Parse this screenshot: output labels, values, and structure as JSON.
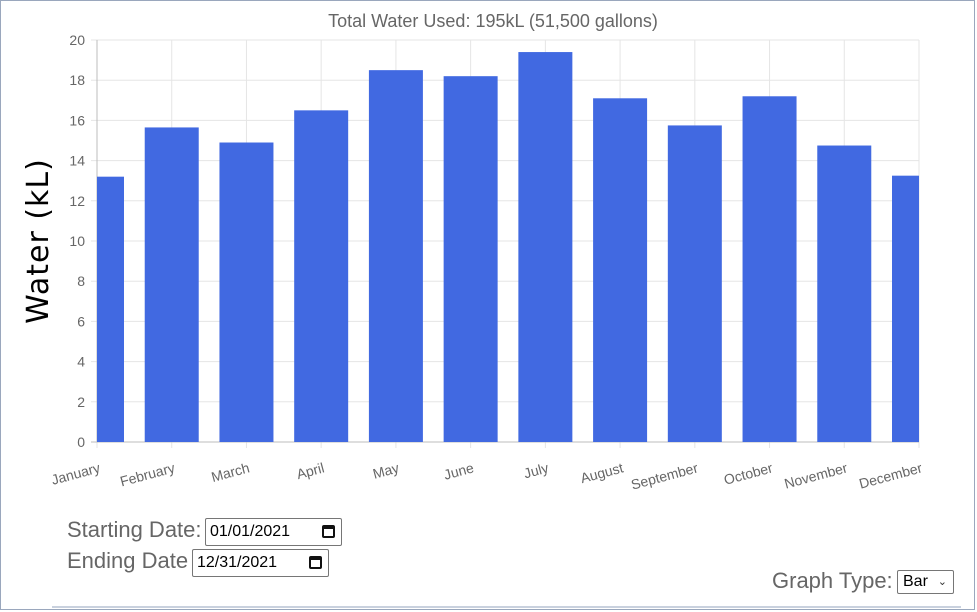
{
  "chart_data": {
    "type": "bar",
    "title": "Total Water Used: 195kL (51,500 gallons)",
    "ylabel": "Water (kL)",
    "xlabel": "",
    "categories": [
      "January",
      "February",
      "March",
      "April",
      "May",
      "June",
      "July",
      "August",
      "September",
      "October",
      "November",
      "December"
    ],
    "values": [
      13.2,
      15.65,
      14.9,
      16.5,
      18.5,
      18.2,
      19.4,
      17.1,
      15.75,
      17.2,
      14.75,
      13.25
    ],
    "ylim": [
      0,
      20
    ],
    "yticks": [
      "0",
      "2",
      "4",
      "6",
      "8",
      "10",
      "12",
      "14",
      "16",
      "18",
      "20"
    ],
    "bar_color": "#4169e1",
    "grid": true
  },
  "controls": {
    "start_label": "Starting Date:",
    "start_value": "01/01/2021",
    "end_label": "Ending Date",
    "end_value": "12/31/2021",
    "graph_type_label": "Graph Type:",
    "graph_type_value": "Bar"
  },
  "icons": {
    "calendar": "calendar-icon",
    "dropdown": "chevron-down-icon"
  }
}
